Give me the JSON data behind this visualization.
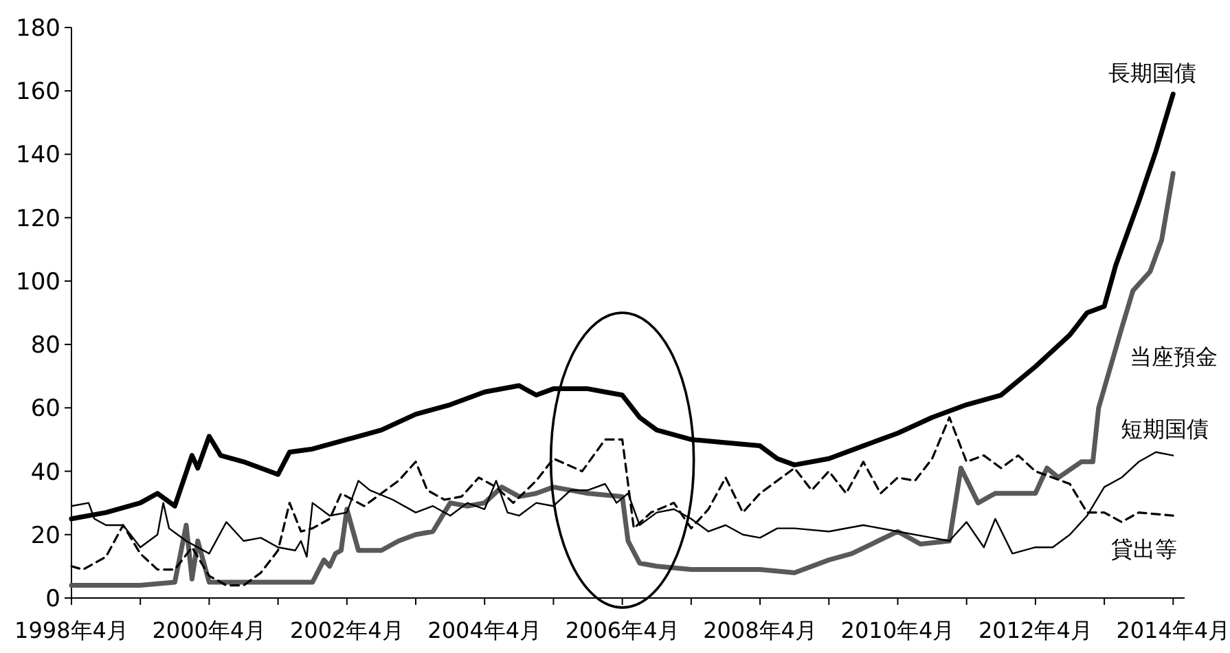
{
  "chart_data": {
    "type": "line",
    "xlim": [
      "1998-04",
      "2014-06"
    ],
    "ylim": [
      0,
      180
    ],
    "yticks": [
      0,
      20,
      40,
      60,
      80,
      100,
      120,
      140,
      160,
      180
    ],
    "xticks": [
      {
        "value": "1998-04",
        "label": "1998年4月"
      },
      {
        "value": "1999-04",
        "label": null
      },
      {
        "value": "2000-04",
        "label": "2000年4月"
      },
      {
        "value": "2001-04",
        "label": null
      },
      {
        "value": "2002-04",
        "label": "2002年4月"
      },
      {
        "value": "2003-04",
        "label": null
      },
      {
        "value": "2004-04",
        "label": "2004年4月"
      },
      {
        "value": "2005-04",
        "label": null
      },
      {
        "value": "2006-04",
        "label": "2006年4月"
      },
      {
        "value": "2007-04",
        "label": null
      },
      {
        "value": "2008-04",
        "label": "2008年4月"
      },
      {
        "value": "2009-04",
        "label": null
      },
      {
        "value": "2010-04",
        "label": "2010年4月"
      },
      {
        "value": "2011-04",
        "label": null
      },
      {
        "value": "2012-04",
        "label": "2012年4月"
      },
      {
        "value": "2013-04",
        "label": null
      },
      {
        "value": "2014-04",
        "label": "2014年4月"
      }
    ],
    "grid": false,
    "marker": "none",
    "series": [
      {
        "name": "長期国債",
        "color": "#000000",
        "line_style": "solid",
        "x": [
          "1998-04",
          "1998-10",
          "1999-04",
          "1999-07",
          "1999-10",
          "2000-01",
          "2000-02",
          "2000-04",
          "2000-06",
          "2000-10",
          "2001-01",
          "2001-04",
          "2001-06",
          "2001-10",
          "2002-04",
          "2002-10",
          "2003-04",
          "2003-10",
          "2004-04",
          "2004-10",
          "2005-01",
          "2005-04",
          "2005-10",
          "2006-01",
          "2006-04",
          "2006-07",
          "2006-10",
          "2007-04",
          "2007-10",
          "2008-04",
          "2008-07",
          "2008-10",
          "2009-04",
          "2009-10",
          "2010-04",
          "2010-10",
          "2011-04",
          "2011-10",
          "2012-04",
          "2012-10",
          "2013-01",
          "2013-04",
          "2013-06",
          "2013-10",
          "2014-01",
          "2014-04"
        ],
        "values": [
          25,
          27,
          30,
          33,
          29,
          45,
          41,
          51,
          45,
          43,
          41,
          39,
          46,
          47,
          50,
          53,
          58,
          61,
          65,
          67,
          64,
          66,
          66,
          65,
          64,
          57,
          53,
          50,
          49,
          48,
          44,
          42,
          44,
          48,
          52,
          57,
          61,
          64,
          73,
          83,
          90,
          92,
          105,
          125,
          141,
          159
        ]
      },
      {
        "name": "当座預金",
        "color": "#595959",
        "line_style": "solid",
        "x": [
          "1998-04",
          "1999-04",
          "1999-10",
          "1999-12",
          "2000-01",
          "2000-02",
          "2000-04",
          "2001-04",
          "2001-10",
          "2001-12",
          "2002-01",
          "2002-02",
          "2002-03",
          "2002-04",
          "2002-06",
          "2002-10",
          "2003-01",
          "2003-04",
          "2003-07",
          "2003-10",
          "2004-01",
          "2004-04",
          "2004-07",
          "2004-10",
          "2005-01",
          "2005-04",
          "2005-10",
          "2006-04",
          "2006-05",
          "2006-07",
          "2006-10",
          "2007-04",
          "2008-04",
          "2008-10",
          "2009-04",
          "2009-08",
          "2010-04",
          "2010-08",
          "2011-01",
          "2011-03",
          "2011-06",
          "2011-09",
          "2012-04",
          "2012-06",
          "2012-08",
          "2012-12",
          "2013-02",
          "2013-03",
          "2013-07",
          "2013-09",
          "2013-12",
          "2014-02",
          "2014-04"
        ],
        "values": [
          4,
          4,
          5,
          23,
          6,
          18,
          5,
          5,
          5,
          12,
          10,
          14,
          15,
          28,
          15,
          15,
          18,
          20,
          21,
          30,
          29,
          30,
          35,
          32,
          33,
          35,
          33,
          32,
          18,
          11,
          10,
          9,
          9,
          8,
          12,
          14,
          21,
          17,
          18,
          41,
          30,
          33,
          33,
          41,
          38,
          43,
          43,
          60,
          85,
          97,
          103,
          113,
          134
        ]
      },
      {
        "name": "貸出等",
        "color": "#000000",
        "line_style": "dashed",
        "x": [
          "1998-04",
          "1998-06",
          "1998-10",
          "1999-01",
          "1999-04",
          "1999-07",
          "1999-10",
          "2000-01",
          "2000-04",
          "2000-07",
          "2000-10",
          "2001-01",
          "2001-04",
          "2001-06",
          "2001-08",
          "2001-10",
          "2002-01",
          "2002-03",
          "2002-07",
          "2002-10",
          "2003-01",
          "2003-04",
          "2003-06",
          "2003-09",
          "2003-12",
          "2004-03",
          "2004-06",
          "2004-09",
          "2005-01",
          "2005-04",
          "2005-09",
          "2006-01",
          "2006-04",
          "2006-06",
          "2006-09",
          "2007-01",
          "2007-04",
          "2007-07",
          "2007-10",
          "2008-01",
          "2008-04",
          "2008-10",
          "2009-01",
          "2009-04",
          "2009-07",
          "2009-10",
          "2010-01",
          "2010-04",
          "2010-07",
          "2010-10",
          "2011-01",
          "2011-04",
          "2011-07",
          "2011-10",
          "2012-01",
          "2012-04",
          "2012-10",
          "2013-01",
          "2013-04",
          "2013-07",
          "2013-10",
          "2014-04"
        ],
        "values": [
          10,
          9,
          13,
          23,
          14,
          9,
          9,
          16,
          7,
          4,
          4,
          8,
          15,
          30,
          21,
          22,
          25,
          33,
          29,
          33,
          37,
          43,
          34,
          31,
          32,
          38,
          35,
          30,
          37,
          44,
          40,
          50,
          50,
          22,
          27,
          30,
          22,
          28,
          38,
          27,
          33,
          41,
          34,
          40,
          33,
          43,
          33,
          38,
          37,
          44,
          57,
          43,
          45,
          41,
          45,
          40,
          36,
          27,
          27,
          24,
          27,
          26
        ]
      },
      {
        "name": "短期国債",
        "color": "#000000",
        "line_style": "solid",
        "x": [
          "1998-04",
          "1998-07",
          "1998-08",
          "1998-10",
          "1999-01",
          "1999-04",
          "1999-07",
          "1999-08",
          "1999-09",
          "1999-12",
          "2000-04",
          "2000-07",
          "2000-10",
          "2001-01",
          "2001-04",
          "2001-07",
          "2001-08",
          "2001-09",
          "2001-10",
          "2002-01",
          "2002-04",
          "2002-06",
          "2002-08",
          "2002-12",
          "2003-04",
          "2003-07",
          "2003-10",
          "2004-01",
          "2004-04",
          "2004-06",
          "2004-08",
          "2004-10",
          "2005-01",
          "2005-04",
          "2005-07",
          "2005-10",
          "2006-01",
          "2006-03",
          "2006-05",
          "2006-07",
          "2006-10",
          "2007-01",
          "2007-04",
          "2007-07",
          "2007-10",
          "2008-01",
          "2008-04",
          "2008-07",
          "2008-10",
          "2009-04",
          "2009-10",
          "2010-04",
          "2010-10",
          "2011-01",
          "2011-04",
          "2011-07",
          "2011-09",
          "2011-12",
          "2012-04",
          "2012-07",
          "2012-10",
          "2013-01",
          "2013-04",
          "2013-07",
          "2013-10",
          "2014-01",
          "2014-04"
        ],
        "values": [
          29,
          30,
          25,
          23,
          23,
          16,
          20,
          30,
          22,
          18,
          14,
          24,
          18,
          19,
          16,
          15,
          18,
          13,
          30,
          26,
          27,
          37,
          34,
          31,
          27,
          29,
          26,
          30,
          28,
          37,
          27,
          26,
          30,
          29,
          34,
          34,
          36,
          30,
          33,
          23,
          27,
          28,
          25,
          21,
          23,
          20,
          19,
          22,
          22,
          21,
          23,
          21,
          19,
          18,
          24,
          16,
          25,
          14,
          16,
          16,
          20,
          26,
          35,
          38,
          43,
          46,
          45
        ]
      }
    ]
  }
}
